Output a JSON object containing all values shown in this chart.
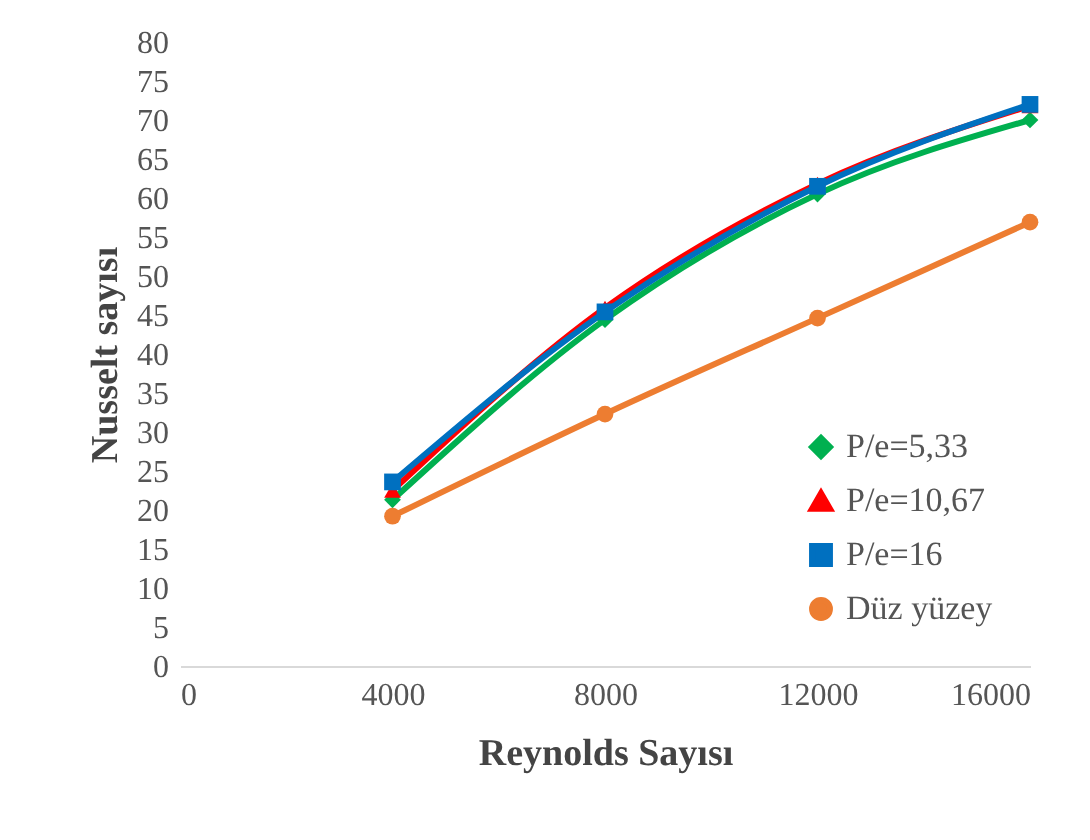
{
  "chart_data": {
    "type": "line",
    "xlabel": "Reynolds Sayısı",
    "ylabel": "Nusselt  sayısı",
    "x": [
      4000,
      8000,
      12000,
      16000
    ],
    "xlim": [
      0,
      16000
    ],
    "xticks": [
      0,
      4000,
      8000,
      12000,
      16000
    ],
    "ylim": [
      0,
      80
    ],
    "yticks": [
      0,
      5,
      10,
      15,
      20,
      25,
      30,
      35,
      40,
      45,
      50,
      55,
      60,
      65,
      70,
      75,
      80
    ],
    "grid": false,
    "legend": "bottom right",
    "series": [
      {
        "name": "P/e=5,33",
        "color": "#00b050",
        "marker": "diamond",
        "values": [
          21.3,
          44.4,
          60.5,
          70
        ]
      },
      {
        "name": "P/e=10,67",
        "color": "#ff0000",
        "marker": "triangle",
        "values": [
          22.5,
          45.9,
          61.8,
          71.8
        ]
      },
      {
        "name": "P/e=16",
        "color": "#0070c0",
        "marker": "square",
        "values": [
          23.6,
          45.4,
          61.5,
          72
        ]
      },
      {
        "name": "Düz yüzey",
        "color": "#ed7d31",
        "marker": "circle",
        "values": [
          19.2,
          32.3,
          44.6,
          56.9
        ]
      }
    ]
  }
}
